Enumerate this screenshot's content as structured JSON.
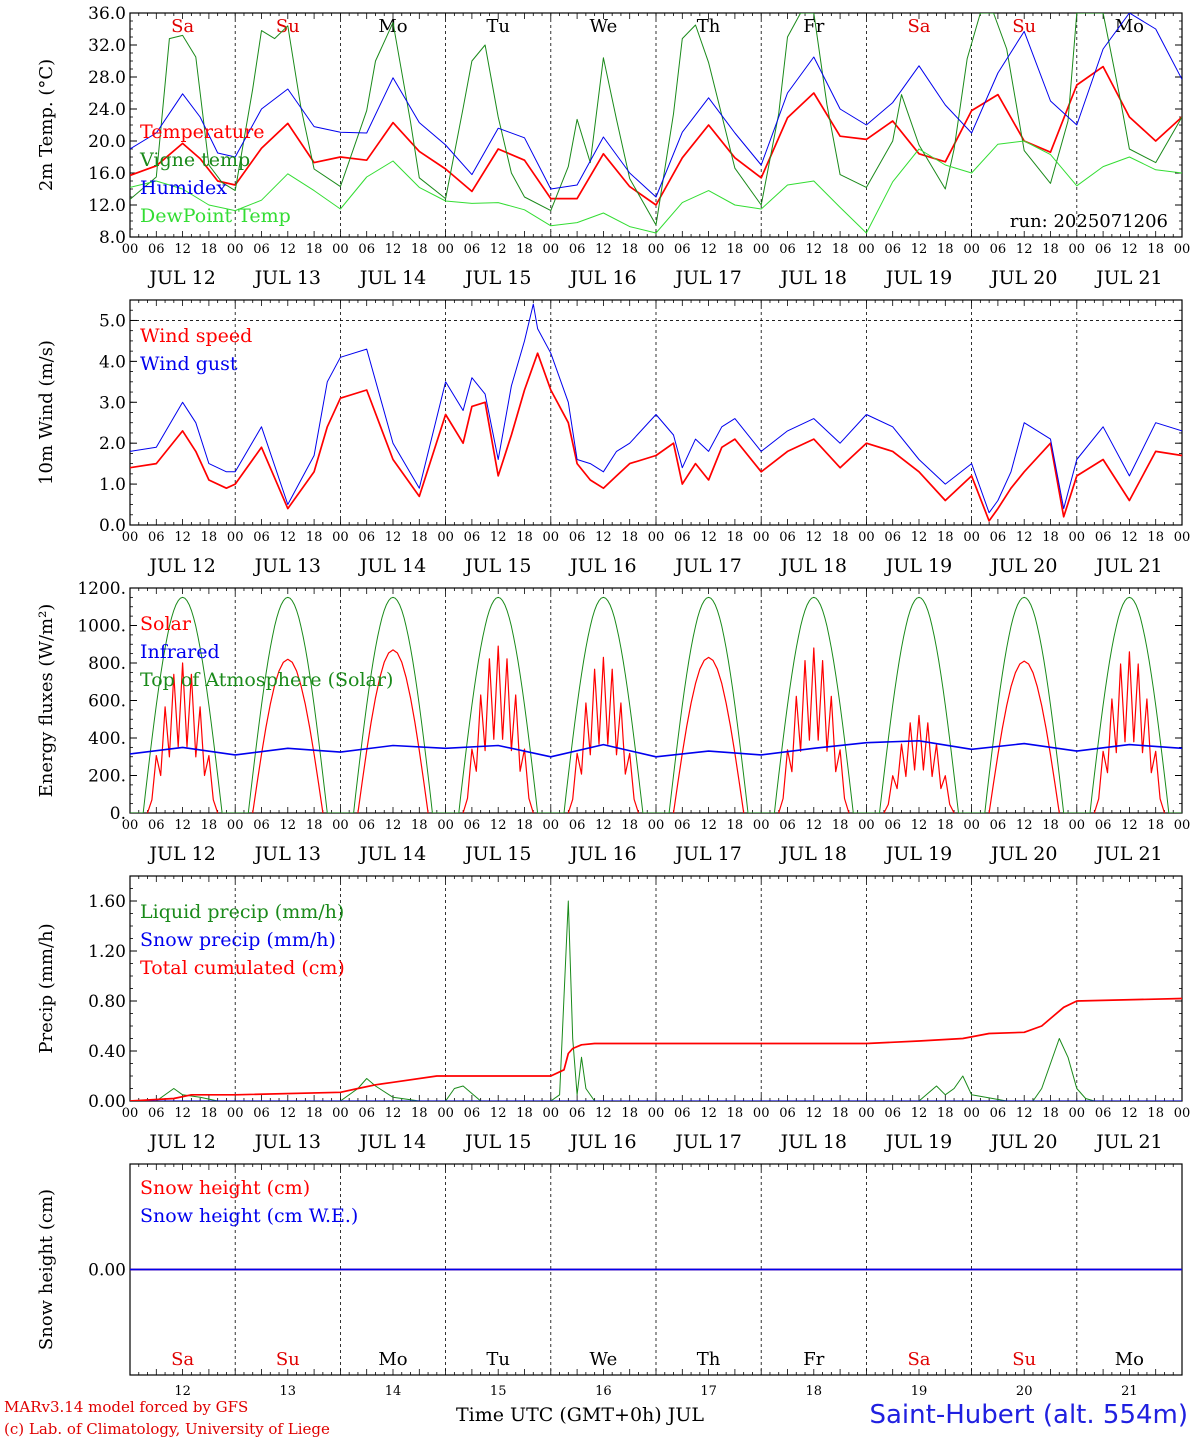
{
  "run_label": "run: 2025071206",
  "days": {
    "abbr": [
      "Sa",
      "Su",
      "Mo",
      "Tu",
      "We",
      "Th",
      "Fr",
      "Sa",
      "Su",
      "Mo"
    ],
    "abbr_colors": [
      "#e00000",
      "#e00000",
      "#000000",
      "#000000",
      "#000000",
      "#000000",
      "#000000",
      "#e00000",
      "#e00000",
      "#000000"
    ],
    "dates": [
      "JUL 12",
      "JUL 13",
      "JUL 14",
      "JUL 15",
      "JUL 16",
      "JUL 17",
      "JUL 18",
      "JUL 19",
      "JUL 20",
      "JUL 21"
    ],
    "day_numbers": [
      "12",
      "13",
      "14",
      "15",
      "16",
      "17",
      "18",
      "19",
      "20",
      "21"
    ],
    "hour_ticks": [
      "00",
      "06",
      "12",
      "18"
    ],
    "final_hour_tick": "00"
  },
  "footer": {
    "model": "MARv3.14 model forced by GFS",
    "copyright": "(c) Lab. of Climatology, University of Liege",
    "time_axis": "Time UTC (GMT+0h) JUL",
    "station": "Saint-Hubert (alt. 554m)"
  },
  "colors": {
    "red": "#ff0000",
    "blue": "#0000ee",
    "green": "#1a8a1a",
    "light_green": "#33dd33"
  },
  "chart_data": [
    {
      "type": "line",
      "ylabel": "2m Temp. (°C)",
      "ylim": [
        8,
        36
      ],
      "yticks": [
        "8.0",
        "12.0",
        "16.0",
        "20.0",
        "24.0",
        "28.0",
        "32.0",
        "36.0"
      ],
      "x_unit": "hours since JUL 12 00 UTC",
      "series": [
        {
          "name": "Temperature",
          "color": "#ff0000",
          "x": [
            0,
            6,
            12,
            16,
            20,
            24,
            30,
            36,
            42,
            48,
            54,
            60,
            66,
            72,
            78,
            84,
            90,
            96,
            102,
            108,
            114,
            120,
            126,
            132,
            138,
            144,
            150,
            156,
            162,
            168,
            174,
            180,
            186,
            192,
            198,
            204,
            210,
            216,
            222,
            228,
            234,
            240
          ],
          "y": [
            15.7,
            16.9,
            19.7,
            17.8,
            15.0,
            14.5,
            19.1,
            22.2,
            17.3,
            18.0,
            17.6,
            22.3,
            18.7,
            16.5,
            13.7,
            19.0,
            17.6,
            12.8,
            12.8,
            18.4,
            14.3,
            12.0,
            17.9,
            22.0,
            17.9,
            15.4,
            22.9,
            26.0,
            20.6,
            20.2,
            22.5,
            18.4,
            17.4,
            23.8,
            25.8,
            20.0,
            18.6,
            27.0,
            29.3,
            23.0,
            20.0,
            23.0
          ]
        },
        {
          "name": "Vigne temp",
          "color": "#1a8a1a",
          "x": [
            0,
            6,
            9,
            12,
            15,
            18,
            21,
            24,
            28,
            30,
            33,
            36,
            39,
            42,
            48,
            54,
            56,
            60,
            64,
            66,
            72,
            76,
            78,
            81,
            84,
            87,
            90,
            96,
            100,
            102,
            105,
            108,
            111,
            114,
            120,
            124,
            126,
            129,
            132,
            135,
            138,
            144,
            148,
            150,
            153,
            156,
            159,
            162,
            168,
            174,
            176,
            180,
            186,
            188,
            191,
            194,
            197,
            200,
            204,
            210,
            214,
            216,
            219,
            222,
            226,
            228,
            234,
            240
          ],
          "y": [
            12.7,
            15.5,
            32.8,
            33.2,
            30.5,
            17.0,
            14.8,
            13.8,
            26.5,
            33.8,
            32.8,
            34.4,
            24.2,
            16.5,
            14.3,
            23.8,
            30.0,
            34.8,
            22.4,
            15.4,
            12.8,
            24.1,
            30.0,
            32.0,
            23.0,
            16.0,
            13.0,
            11.3,
            16.8,
            22.7,
            17.3,
            30.4,
            22.7,
            15.3,
            9.5,
            23.4,
            32.8,
            34.5,
            29.8,
            23.2,
            16.6,
            12.0,
            23.4,
            33.0,
            36.0,
            36.0,
            24.5,
            15.8,
            14.2,
            20.0,
            25.8,
            19.5,
            14.0,
            19.0,
            30.3,
            36.0,
            36.0,
            31.5,
            18.8,
            14.7,
            22.5,
            36.0,
            36.0,
            36.0,
            25.0,
            19.0,
            17.3,
            23.0
          ]
        },
        {
          "name": "Humidex",
          "color": "#0000ee",
          "x": [
            0,
            6,
            12,
            16,
            20,
            24,
            30,
            36,
            42,
            48,
            54,
            60,
            66,
            72,
            78,
            84,
            90,
            96,
            102,
            108,
            114,
            120,
            126,
            132,
            138,
            144,
            150,
            156,
            162,
            168,
            174,
            180,
            186,
            192,
            198,
            204,
            210,
            216,
            222,
            228,
            234,
            240
          ],
          "y": [
            19.0,
            21.0,
            25.9,
            23.0,
            18.5,
            18.0,
            24.0,
            26.5,
            21.8,
            21.1,
            21.0,
            27.9,
            22.3,
            19.5,
            15.8,
            21.6,
            20.4,
            14.0,
            14.5,
            20.5,
            16.0,
            13.0,
            21.1,
            25.4,
            21.0,
            17.0,
            26.0,
            30.5,
            24.0,
            22.0,
            24.8,
            29.4,
            24.5,
            21.0,
            28.5,
            33.7,
            25.0,
            22.0,
            31.5,
            36.0,
            34.0,
            27.7
          ]
        },
        {
          "name": "DewPoint Temp",
          "color": "#33dd33",
          "x": [
            0,
            6,
            12,
            18,
            24,
            30,
            36,
            42,
            48,
            54,
            60,
            66,
            72,
            78,
            84,
            90,
            96,
            102,
            108,
            114,
            120,
            126,
            132,
            138,
            144,
            150,
            156,
            162,
            168,
            174,
            180,
            186,
            192,
            198,
            204,
            210,
            216,
            222,
            228,
            234,
            240
          ],
          "y": [
            14.2,
            15.0,
            14.0,
            12.0,
            11.3,
            12.6,
            15.9,
            13.8,
            11.5,
            15.5,
            17.5,
            14.2,
            12.5,
            12.2,
            12.3,
            11.4,
            9.4,
            9.8,
            11.0,
            9.3,
            8.5,
            12.3,
            13.8,
            12.0,
            11.5,
            14.5,
            15.0,
            11.7,
            8.5,
            14.9,
            19.0,
            17.0,
            16.0,
            19.6,
            20.0,
            18.3,
            14.4,
            16.8,
            18.0,
            16.4,
            16.0
          ]
        }
      ]
    },
    {
      "type": "line",
      "ylabel": "10m Wind (m/s)",
      "ylim": [
        0,
        5.5
      ],
      "yticks": [
        "0.0",
        "1.0",
        "2.0",
        "3.0",
        "4.0",
        "5.0"
      ],
      "x_unit": "hours since JUL 12 00 UTC",
      "series": [
        {
          "name": "Wind speed",
          "color": "#ff0000",
          "x": [
            0,
            6,
            12,
            15,
            18,
            22,
            24,
            30,
            36,
            42,
            45,
            48,
            54,
            60,
            66,
            72,
            76,
            78,
            81,
            84,
            87,
            90,
            93,
            96,
            100,
            102,
            105,
            108,
            111,
            114,
            120,
            124,
            126,
            129,
            132,
            135,
            138,
            144,
            150,
            156,
            162,
            168,
            174,
            180,
            186,
            192,
            196,
            198,
            201,
            204,
            210,
            213,
            216,
            222,
            228,
            234,
            240
          ],
          "y": [
            1.4,
            1.5,
            2.3,
            1.8,
            1.1,
            0.9,
            1.0,
            1.9,
            0.4,
            1.3,
            2.4,
            3.1,
            3.3,
            1.6,
            0.7,
            2.7,
            2.0,
            2.9,
            3.0,
            1.2,
            2.2,
            3.3,
            4.2,
            3.3,
            2.5,
            1.5,
            1.1,
            0.9,
            1.2,
            1.5,
            1.7,
            2.0,
            1.0,
            1.5,
            1.1,
            1.9,
            2.1,
            1.3,
            1.8,
            2.1,
            1.4,
            2.0,
            1.8,
            1.3,
            0.6,
            1.2,
            0.1,
            0.4,
            0.9,
            1.3,
            2.0,
            0.2,
            1.2,
            1.6,
            0.6,
            1.8,
            1.7
          ]
        },
        {
          "name": "Wind gust",
          "color": "#0000ee",
          "x": [
            0,
            6,
            12,
            15,
            18,
            22,
            24,
            30,
            36,
            42,
            45,
            48,
            54,
            60,
            66,
            72,
            76,
            78,
            81,
            84,
            87,
            90,
            92,
            93,
            96,
            100,
            102,
            105,
            108,
            111,
            114,
            120,
            124,
            126,
            129,
            132,
            135,
            138,
            144,
            150,
            156,
            162,
            168,
            174,
            180,
            186,
            192,
            196,
            198,
            201,
            204,
            210,
            213,
            216,
            222,
            228,
            234,
            240
          ],
          "y": [
            1.8,
            1.9,
            3.0,
            2.5,
            1.5,
            1.3,
            1.3,
            2.4,
            0.5,
            1.7,
            3.5,
            4.1,
            4.3,
            2.0,
            0.9,
            3.5,
            2.8,
            3.6,
            3.2,
            1.6,
            3.4,
            4.5,
            5.4,
            4.8,
            4.2,
            3.0,
            1.6,
            1.5,
            1.3,
            1.8,
            2.0,
            2.7,
            2.2,
            1.4,
            2.1,
            1.8,
            2.4,
            2.6,
            1.8,
            2.3,
            2.6,
            2.0,
            2.7,
            2.4,
            1.6,
            1.0,
            1.5,
            0.3,
            0.6,
            1.3,
            2.5,
            2.1,
            0.4,
            1.6,
            2.4,
            1.2,
            2.5,
            2.3
          ]
        }
      ]
    },
    {
      "type": "line",
      "ylabel": "Energy fluxes (W/m²)",
      "ylim": [
        0,
        1200
      ],
      "yticks": [
        "0.",
        "200.",
        "400.",
        "600.",
        "800.",
        "1000.",
        "1200."
      ],
      "x_unit": "hours since JUL 12 00 UTC",
      "series": [
        {
          "name": "Solar",
          "color": "#ff0000",
          "daily_peaks": [
            800,
            820,
            870,
            890,
            830,
            830,
            880,
            520,
            810,
            860
          ]
        },
        {
          "name": "Infrared",
          "color": "#0000ee",
          "x": [
            0,
            12,
            24,
            36,
            48,
            60,
            72,
            84,
            96,
            108,
            120,
            132,
            144,
            156,
            168,
            180,
            192,
            204,
            216,
            228,
            240
          ],
          "y": [
            315,
            350,
            310,
            345,
            325,
            360,
            345,
            360,
            300,
            365,
            300,
            330,
            310,
            345,
            375,
            385,
            340,
            370,
            330,
            365,
            345
          ]
        },
        {
          "name": "Top of Atmosphere (Solar)",
          "color": "#1a8a1a",
          "daily_peak": 1150
        }
      ]
    },
    {
      "type": "line",
      "ylabel": "Precip (mm/h)",
      "ylim": [
        0,
        1.8
      ],
      "yticks": [
        "0.00",
        "0.40",
        "0.80",
        "1.20",
        "1.60"
      ],
      "x_unit": "hours since JUL 12 00 UTC",
      "series": [
        {
          "name": "Liquid precip (mm/h)",
          "color": "#1a8a1a",
          "x": [
            0,
            6,
            10,
            12,
            16,
            20,
            24,
            48,
            52,
            54,
            56,
            60,
            66,
            72,
            74,
            76,
            78,
            80,
            84,
            96,
            98,
            100,
            101,
            102,
            103,
            104,
            106,
            108,
            180,
            184,
            186,
            188,
            190,
            192,
            200,
            206,
            208,
            210,
            212,
            214,
            216,
            218,
            220,
            240
          ],
          "y": [
            0,
            0,
            0.1,
            0.05,
            0.03,
            0,
            0,
            0,
            0.1,
            0.18,
            0.12,
            0.03,
            0,
            0,
            0.1,
            0.12,
            0.06,
            0,
            0,
            0,
            0.05,
            1.6,
            0.5,
            0.05,
            0.35,
            0.1,
            0,
            0,
            0,
            0.12,
            0.05,
            0.1,
            0.2,
            0.05,
            0,
            0,
            0.1,
            0.3,
            0.5,
            0.35,
            0.1,
            0.02,
            0,
            0
          ]
        },
        {
          "name": "Snow precip (mm/h)",
          "color": "#0000ee",
          "x": [
            0,
            240
          ],
          "y": [
            0,
            0
          ]
        },
        {
          "name": "Total cumulated (cm)",
          "color": "#ff0000",
          "x": [
            0,
            10,
            14,
            24,
            48,
            52,
            56,
            60,
            70,
            84,
            96,
            99,
            100,
            101,
            103,
            106,
            108,
            120,
            144,
            168,
            180,
            190,
            196,
            204,
            208,
            210,
            213,
            216,
            240
          ],
          "y": [
            0,
            0.02,
            0.05,
            0.05,
            0.07,
            0.1,
            0.13,
            0.15,
            0.2,
            0.2,
            0.2,
            0.25,
            0.38,
            0.42,
            0.45,
            0.46,
            0.46,
            0.46,
            0.46,
            0.46,
            0.48,
            0.5,
            0.54,
            0.55,
            0.6,
            0.66,
            0.75,
            0.8,
            0.82
          ]
        }
      ]
    },
    {
      "type": "line",
      "ylabel": "Snow height (cm)",
      "ylim": [
        -1,
        1
      ],
      "yticks": [
        "0.00"
      ],
      "x_unit": "hours since JUL 12 00 UTC",
      "series": [
        {
          "name": "Snow height (cm)",
          "color": "#ff0000",
          "x": [
            0,
            240
          ],
          "y": [
            0,
            0
          ]
        },
        {
          "name": "Snow height (cm W.E.)",
          "color": "#0000ee",
          "x": [
            0,
            240
          ],
          "y": [
            0,
            0
          ]
        }
      ]
    }
  ]
}
